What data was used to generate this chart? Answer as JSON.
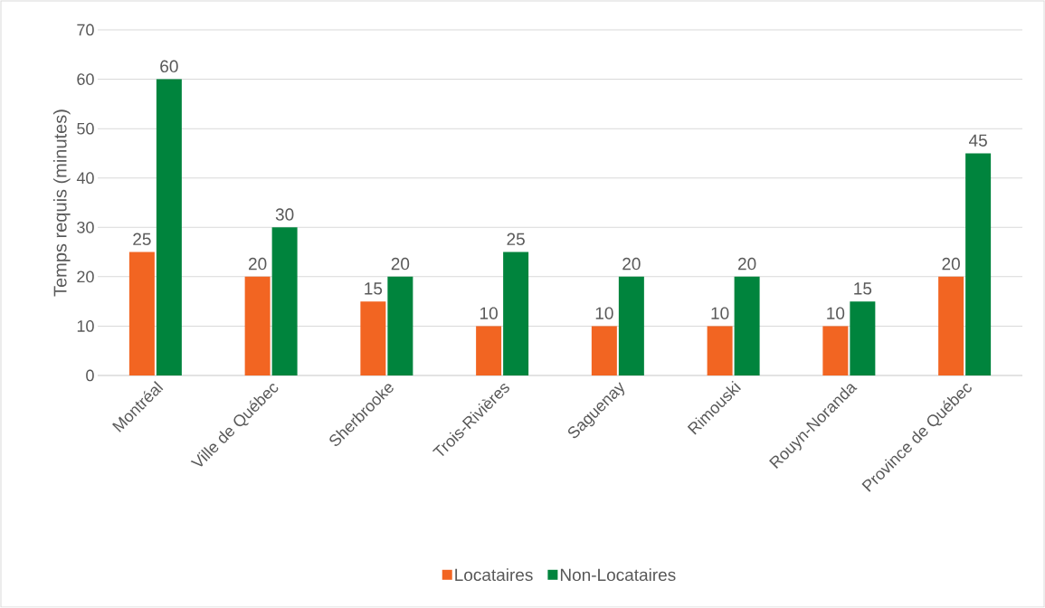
{
  "chart_data": {
    "type": "bar",
    "ylabel": "Temps requis (minutes)",
    "categories": [
      "Montréal",
      "Ville de Québec",
      "Sherbrooke",
      "Trois-Rivières",
      "Saguenay",
      "Rimouski",
      "Rouyn-Noranda",
      "Province de Québec"
    ],
    "series": [
      {
        "name": "Locataires",
        "color": "#f26522",
        "values": [
          25,
          20,
          15,
          10,
          10,
          10,
          10,
          20
        ]
      },
      {
        "name": "Non-Locataires",
        "color": "#00843d",
        "values": [
          60,
          30,
          20,
          25,
          20,
          20,
          15,
          45
        ]
      }
    ],
    "ylim": [
      0,
      70
    ],
    "yticks": [
      0,
      10,
      20,
      30,
      40,
      50,
      60,
      70
    ],
    "grid": "y",
    "legend": "bottom",
    "data_labels": true
  }
}
